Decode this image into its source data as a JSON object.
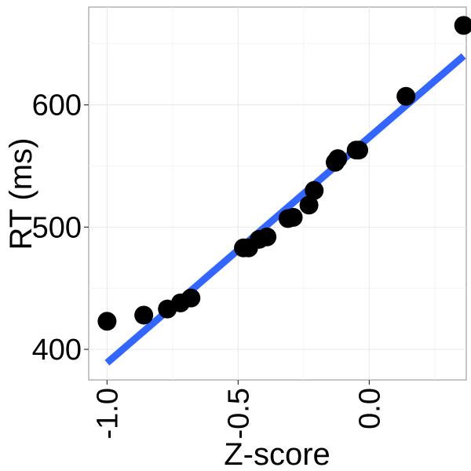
{
  "chart_data": {
    "type": "scatter",
    "title": "",
    "xlabel": "Z-score",
    "ylabel": "RT (ms)",
    "xlim": [
      -1.07,
      0.37
    ],
    "ylim": [
      375,
      680
    ],
    "x_ticks": [
      {
        "value": -1.0,
        "label": "-1.0"
      },
      {
        "value": -0.5,
        "label": "-0.5"
      },
      {
        "value": 0.0,
        "label": "0.0"
      }
    ],
    "y_ticks": [
      {
        "value": 400,
        "label": "400"
      },
      {
        "value": 500,
        "label": "500"
      },
      {
        "value": 600,
        "label": "600"
      }
    ],
    "grid": true,
    "series": [
      {
        "kind": "points",
        "color": "#000000",
        "points": [
          {
            "x": -1.0,
            "y": 423
          },
          {
            "x": -0.86,
            "y": 428
          },
          {
            "x": -0.77,
            "y": 433
          },
          {
            "x": -0.72,
            "y": 438
          },
          {
            "x": -0.68,
            "y": 442
          },
          {
            "x": -0.48,
            "y": 483
          },
          {
            "x": -0.46,
            "y": 483
          },
          {
            "x": -0.42,
            "y": 490
          },
          {
            "x": -0.39,
            "y": 492
          },
          {
            "x": -0.31,
            "y": 507
          },
          {
            "x": -0.29,
            "y": 508
          },
          {
            "x": -0.23,
            "y": 518
          },
          {
            "x": -0.21,
            "y": 530
          },
          {
            "x": -0.13,
            "y": 553
          },
          {
            "x": -0.12,
            "y": 556
          },
          {
            "x": -0.05,
            "y": 563
          },
          {
            "x": -0.04,
            "y": 563
          },
          {
            "x": 0.14,
            "y": 607
          },
          {
            "x": 0.36,
            "y": 665
          }
        ]
      },
      {
        "kind": "fit-line",
        "color": "#3366ff",
        "points": [
          {
            "x": -1.0,
            "y": 389
          },
          {
            "x": 0.36,
            "y": 640
          }
        ]
      }
    ]
  }
}
